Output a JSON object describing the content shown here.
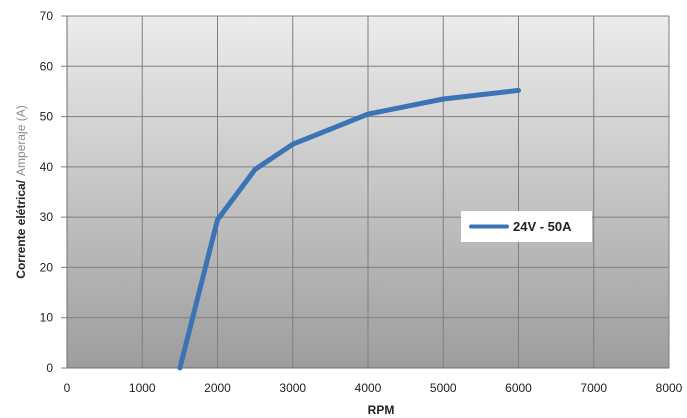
{
  "chart_data": {
    "type": "line",
    "xlabel": "RPM",
    "ylabel_part1": "Corrente elétrica/",
    "ylabel_part2": "Amperaje (A)",
    "xlim": [
      0,
      8000
    ],
    "ylim": [
      0,
      70
    ],
    "xticks": [
      0,
      1000,
      2000,
      3000,
      4000,
      5000,
      6000,
      7000,
      8000
    ],
    "yticks": [
      0,
      10,
      20,
      30,
      40,
      50,
      60,
      70
    ],
    "grid": true,
    "legend_position": "right",
    "series": [
      {
        "name": "24V - 50A",
        "color": "#3b74b5",
        "x": [
          1500,
          2000,
          2500,
          3000,
          4000,
          5000,
          6000
        ],
        "y": [
          0,
          29.5,
          39.5,
          44.5,
          50.5,
          53.5,
          55.2
        ]
      }
    ]
  },
  "colors": {
    "plot_gradient_top": "#ececec",
    "plot_gradient_bottom": "#9d9d9d",
    "grid": "#7f7f7f"
  }
}
